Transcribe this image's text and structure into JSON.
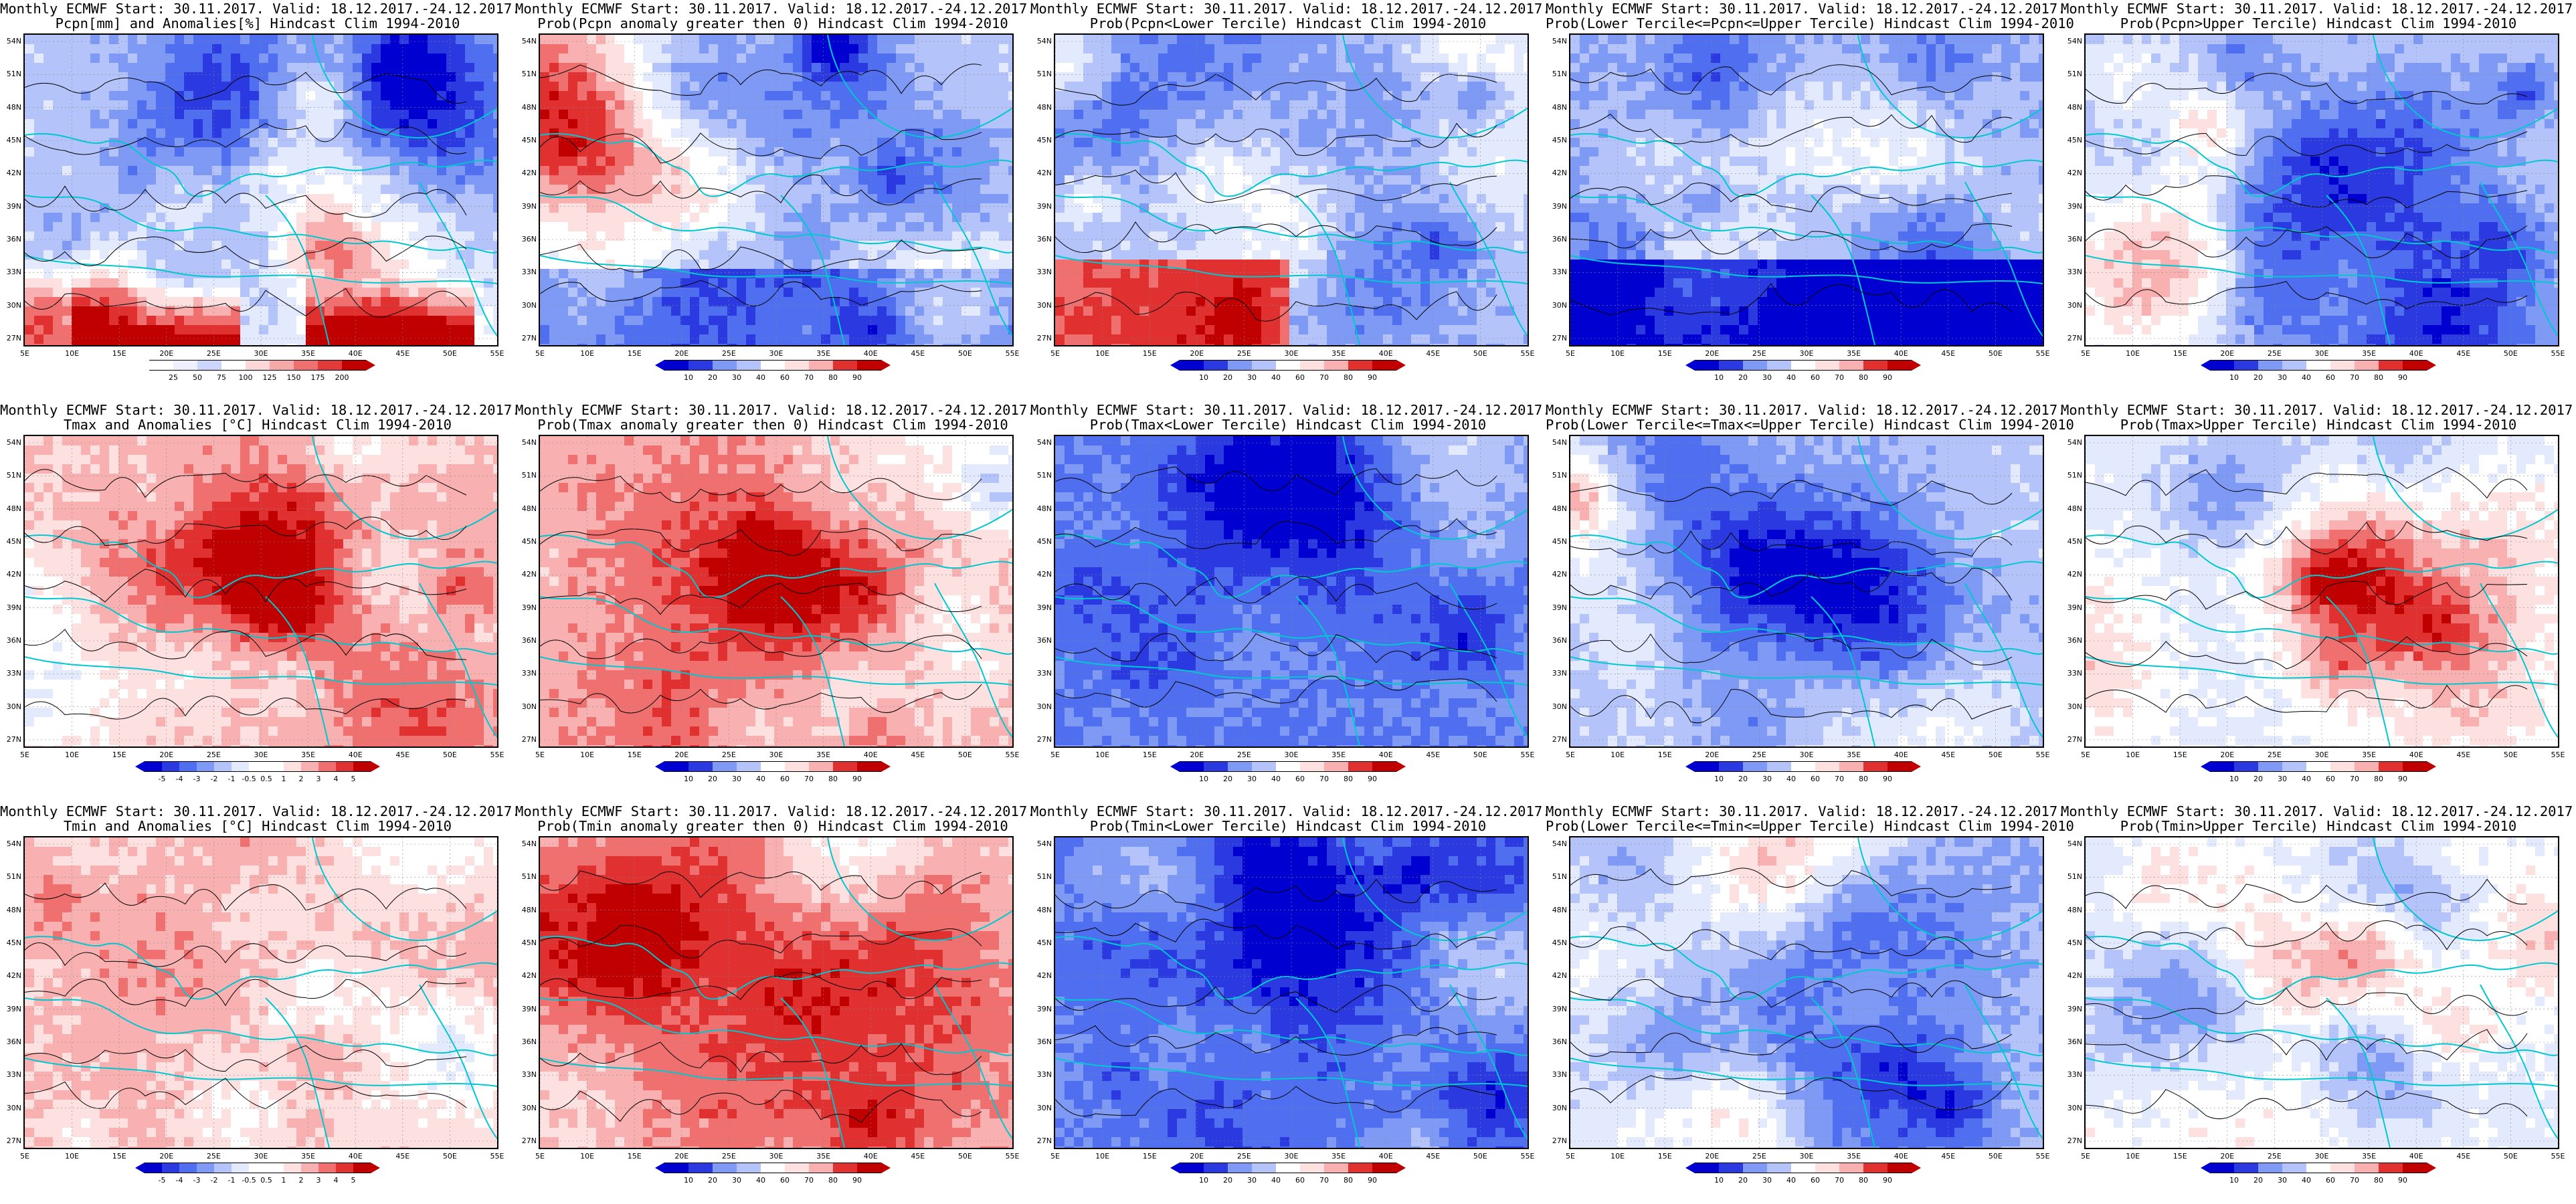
{
  "lat_labels": [
    "54N",
    "51N",
    "48N",
    "45N",
    "42N",
    "39N",
    "36N",
    "33N",
    "30N",
    "27N"
  ],
  "lon_labels": [
    "5E",
    "10E",
    "15E",
    "20E",
    "25E",
    "30E",
    "35E",
    "40E",
    "45E",
    "50E",
    "55E"
  ],
  "colors": {
    "blue_to_red": [
      "#0000d0",
      "#2a3ae0",
      "#4f6ff0",
      "#7f9af4",
      "#b4c3fa",
      "#e4eafe",
      "#ffffff",
      "#fde0e0",
      "#f8b0b0",
      "#f07070",
      "#e03030",
      "#c00000"
    ],
    "coast": "#00c8d0",
    "contour": "#000000"
  },
  "colorbars": {
    "precip_anom": [
      "25",
      "50",
      "75",
      "100",
      "125",
      "150",
      "175",
      "200"
    ],
    "prob": [
      "10",
      "20",
      "30",
      "40",
      "60",
      "70",
      "80",
      "90"
    ],
    "temp_anom": [
      "-5",
      "-4",
      "-3",
      "-2",
      "-1",
      "-0.5",
      "0.5",
      "1",
      "2",
      "3",
      "4",
      "5"
    ]
  },
  "panels": [
    {
      "line1": "Monthly ECMWF Start: 30.11.2017. Valid: 18.12.2017.-24.12.2017.",
      "line2": "Pcpn[mm] and Anomalies[%] Hindcast Clim 1994-2010",
      "bar": "precip_anom",
      "style": "pa"
    },
    {
      "line1": "Monthly ECMWF Start: 30.11.2017. Valid: 18.12.2017.-24.12.2017.",
      "line2": "Prob(Pcpn anomaly greater then 0) Hindcast Clim 1994-2010",
      "bar": "prob",
      "style": "pb"
    },
    {
      "line1": "Monthly ECMWF Start: 30.11.2017. Valid: 18.12.2017.-24.12.2017.",
      "line2": "Prob(Pcpn<Lower Tercile) Hindcast Clim 1994-2010",
      "bar": "prob",
      "style": "pc"
    },
    {
      "line1": "Monthly ECMWF Start: 30.11.2017. Valid: 18.12.2017.-24.12.2017.",
      "line2": "Prob(Lower Tercile<=Pcpn<=Upper Tercile) Hindcast Clim 1994-2010",
      "bar": "prob",
      "style": "pd"
    },
    {
      "line1": "Monthly ECMWF Start: 30.11.2017. Valid: 18.12.2017.-24.12.2017.",
      "line2": "Prob(Pcpn>Upper Tercile) Hindcast Clim 1994-2010",
      "bar": "prob",
      "style": "pe"
    },
    {
      "line1": "Monthly ECMWF Start: 30.11.2017. Valid: 18.12.2017.-24.12.2017.",
      "line2": "Tmax and Anomalies [°C] Hindcast Clim 1994-2010",
      "bar": "temp_anom",
      "style": "ta"
    },
    {
      "line1": "Monthly ECMWF Start: 30.11.2017. Valid: 18.12.2017.-24.12.2017.",
      "line2": "Prob(Tmax anomaly greater then 0) Hindcast Clim 1994-2010",
      "bar": "prob",
      "style": "tb"
    },
    {
      "line1": "Monthly ECMWF Start: 30.11.2017. Valid: 18.12.2017.-24.12.2017.",
      "line2": "Prob(Tmax<Lower Tercile) Hindcast Clim 1994-2010",
      "bar": "prob",
      "style": "tc"
    },
    {
      "line1": "Monthly ECMWF Start: 30.11.2017. Valid: 18.12.2017.-24.12.2017.",
      "line2": "Prob(Lower Tercile<=Tmax<=Upper Tercile) Hindcast Clim 1994-2010",
      "bar": "prob",
      "style": "td"
    },
    {
      "line1": "Monthly ECMWF Start: 30.11.2017. Valid: 18.12.2017.-24.12.2017.",
      "line2": "Prob(Tmax>Upper Tercile) Hindcast Clim 1994-2010",
      "bar": "prob",
      "style": "te"
    },
    {
      "line1": "Monthly ECMWF Start: 30.11.2017. Valid: 18.12.2017.-24.12.2017.",
      "line2": "Tmin and Anomalies [°C] Hindcast Clim 1994-2010",
      "bar": "temp_anom",
      "style": "ta"
    },
    {
      "line1": "Monthly ECMWF Start: 30.11.2017. Valid: 18.12.2017.-24.12.2017.",
      "line2": "Prob(Tmin anomaly greater then 0) Hindcast Clim 1994-2010",
      "bar": "prob",
      "style": "tb"
    },
    {
      "line1": "Monthly ECMWF Start: 30.11.2017. Valid: 18.12.2017.-24.12.2017.",
      "line2": "Prob(Tmin<Lower Tercile) Hindcast Clim 1994-2010",
      "bar": "prob",
      "style": "tc"
    },
    {
      "line1": "Monthly ECMWF Start: 30.11.2017. Valid: 18.12.2017.-24.12.2017.",
      "line2": "Prob(Lower Tercile<=Tmin<=Upper Tercile) Hindcast Clim 1994-2010",
      "bar": "prob",
      "style": "td"
    },
    {
      "line1": "Monthly ECMWF Start: 30.11.2017. Valid: 18.12.2017.-24.12.2017.",
      "line2": "Prob(Tmin>Upper Tercile) Hindcast Clim 1994-2010",
      "bar": "prob",
      "style": "te"
    }
  ]
}
